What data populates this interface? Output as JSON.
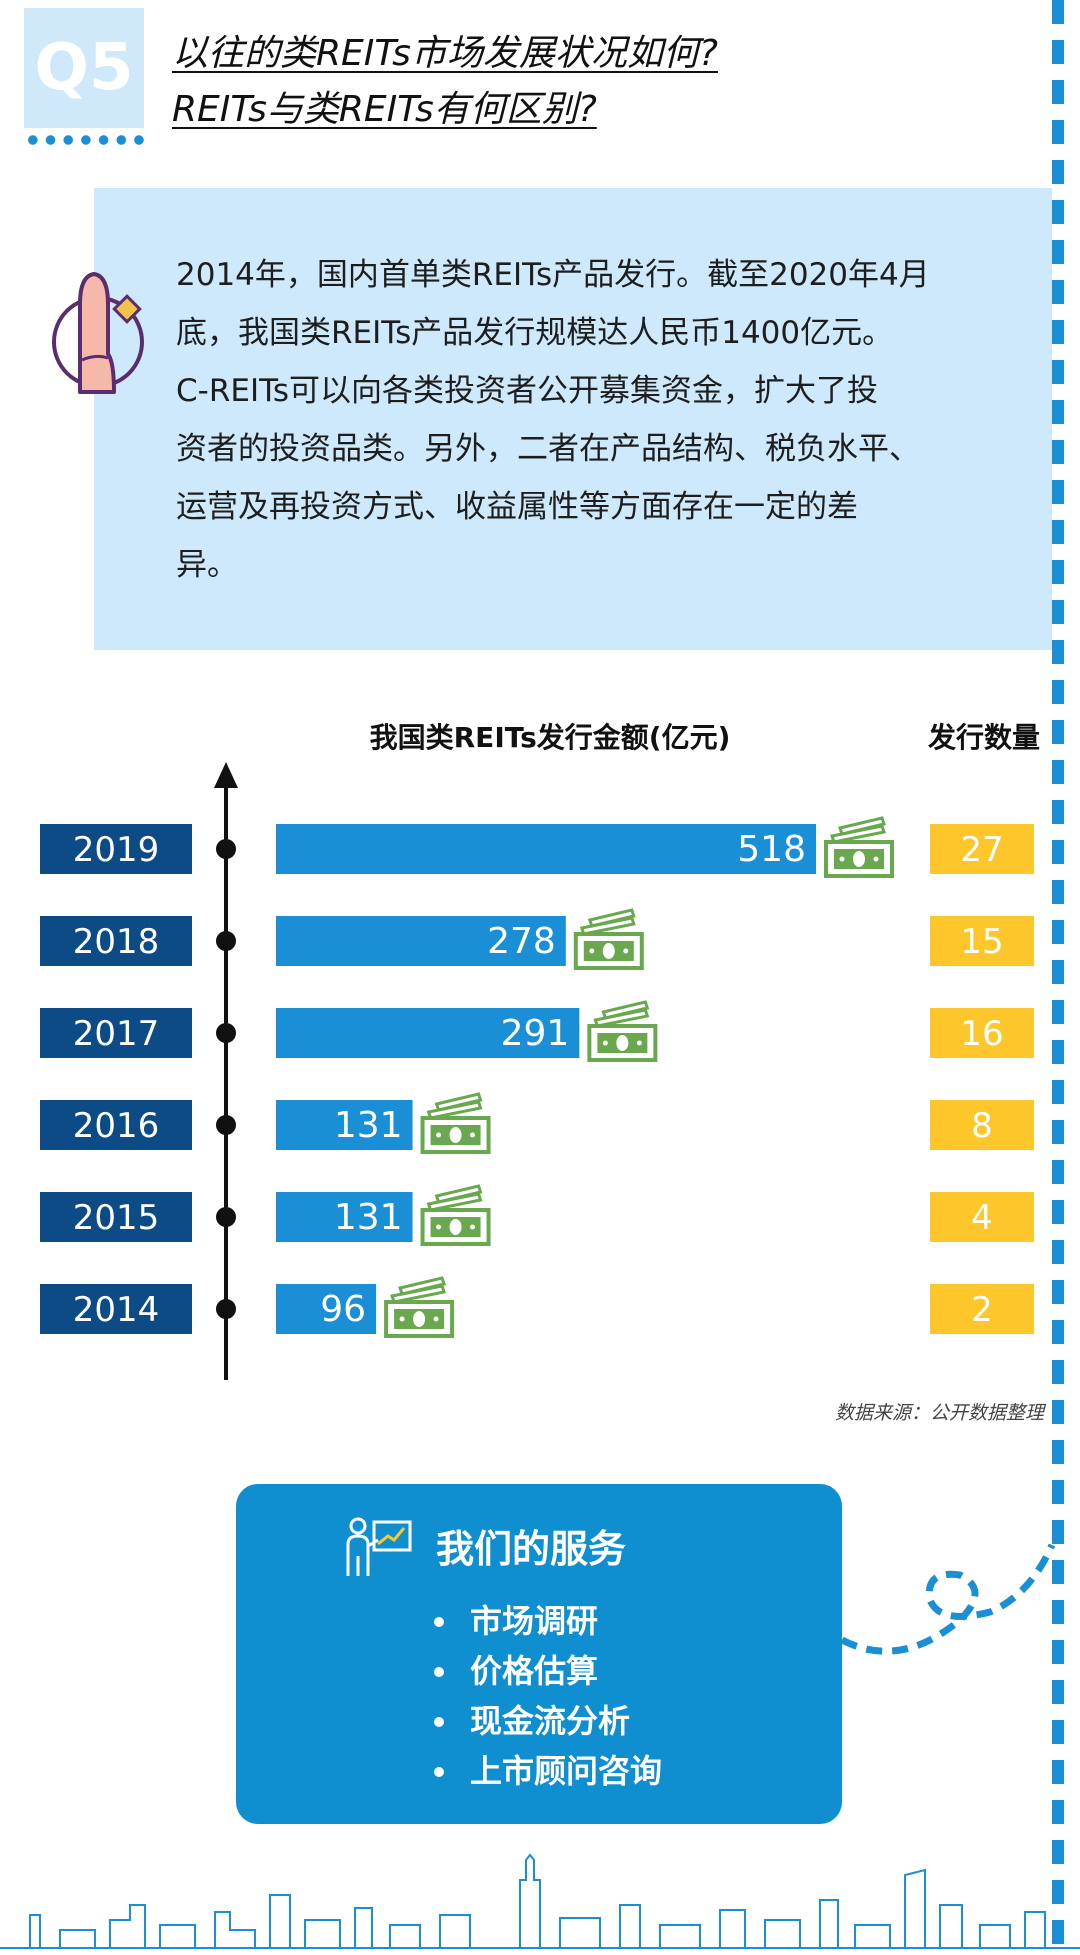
{
  "header": {
    "badge": "Q5",
    "title_line1": "以往的类REITs市场发展状况如何?",
    "title_line2": "REITs与类REITs有何区别? "
  },
  "info": {
    "lines": [
      "2014年，国内首单类REITs产品发行。截至2020年4月",
      "底，我国类REITs产品发行规模达人民币1400亿元。",
      "C-REITs可以向各类投资者公开募集资金，扩大了投",
      "资者的投资品类。另外，二者在产品结构、税负水平、",
      "运营及再投资方式、收益属性等方面存在一定的差",
      "异。"
    ]
  },
  "icons": {
    "hand": "hand-pointing-icon",
    "money": "money-stack-icon",
    "service": "presenter-chart-icon"
  },
  "colors": {
    "year_bg": "#0d4b86",
    "bar": "#1a8fd6",
    "count_bg": "#fdc62a",
    "money": "#6aa84f",
    "accent": "#1a8fd6"
  },
  "chart_data": {
    "type": "bar",
    "orientation": "horizontal",
    "title": "我国类REITs发行金额(亿元)",
    "count_header": "发行数量",
    "categories": [
      "2019",
      "2018",
      "2017",
      "2016",
      "2015",
      "2014"
    ],
    "series": [
      {
        "name": "发行金额(亿元)",
        "values": [
          518,
          278,
          291,
          131,
          131,
          96
        ]
      },
      {
        "name": "发行数量",
        "values": [
          27,
          15,
          16,
          8,
          4,
          2
        ]
      }
    ],
    "xlim": [
      0,
      518
    ],
    "grid": false
  },
  "source": "数据来源：公开数据整理",
  "services": {
    "title": "我们的服务",
    "items": [
      "市场调研",
      "价格估算",
      "现金流分析",
      "上市顾问咨询"
    ]
  }
}
